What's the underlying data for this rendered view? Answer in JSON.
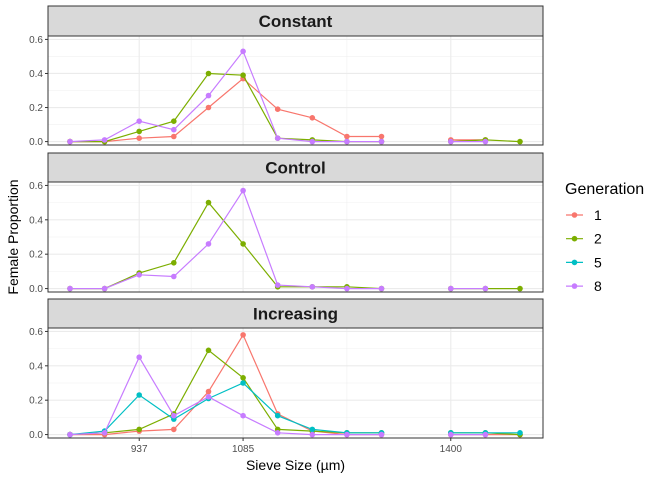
{
  "chart_data": {
    "type": "line",
    "facet_by": "treatment",
    "xlabel": "Sieve Size (µm)",
    "ylabel": "Female Proportion",
    "x_tick_labels": [
      "937",
      "1085",
      "1400"
    ],
    "y_tick_labels": [
      "0.0",
      "0.2",
      "0.4",
      "0.6"
    ],
    "ylim": [
      0,
      0.6
    ],
    "legend": {
      "title": "Generation",
      "position": "right"
    },
    "series_styles": [
      {
        "name": "1",
        "color": "#F8766D"
      },
      {
        "name": "2",
        "color": "#7CAE00"
      },
      {
        "name": "5",
        "color": "#00BFC4"
      },
      {
        "name": "8",
        "color": "#C77CFF"
      }
    ],
    "x": [
      800,
      870,
      937,
      980,
      1020,
      1085,
      1120,
      1180,
      1230,
      1300,
      1350,
      1400,
      1450,
      1520
    ],
    "panels": [
      {
        "title": "Constant",
        "series": [
          {
            "name": "1",
            "values": [
              0.0,
              0.0,
              0.02,
              0.03,
              0.2,
              0.37,
              0.19,
              0.14,
              0.03,
              0.03,
              null,
              0.01,
              0.01,
              null
            ]
          },
          {
            "name": "2",
            "values": [
              0.0,
              0.0,
              0.06,
              0.12,
              0.4,
              0.39,
              0.02,
              0.01,
              0.0,
              0.0,
              null,
              0.0,
              0.01,
              0.0
            ]
          },
          {
            "name": "8",
            "values": [
              0.0,
              0.01,
              0.12,
              0.07,
              0.27,
              0.53,
              0.02,
              0.0,
              0.0,
              0.0,
              null,
              0.0,
              0.0,
              null
            ]
          }
        ]
      },
      {
        "title": "Control",
        "series": [
          {
            "name": "2",
            "values": [
              0.0,
              0.0,
              0.09,
              0.15,
              0.5,
              0.26,
              0.01,
              0.01,
              0.01,
              0.0,
              null,
              0.0,
              0.0,
              0.0
            ]
          },
          {
            "name": "8",
            "values": [
              0.0,
              0.0,
              0.08,
              0.07,
              0.26,
              0.57,
              0.02,
              0.01,
              0.0,
              0.0,
              null,
              0.0,
              0.0,
              null
            ]
          }
        ]
      },
      {
        "title": "Increasing",
        "series": [
          {
            "name": "1",
            "values": [
              0.0,
              0.0,
              0.02,
              0.03,
              0.25,
              0.58,
              0.12,
              0.02,
              0.0,
              0.0,
              null,
              0.0,
              0.0,
              0.0
            ]
          },
          {
            "name": "2",
            "values": [
              0.0,
              0.01,
              0.03,
              0.12,
              0.49,
              0.33,
              0.03,
              0.02,
              0.01,
              0.01,
              null,
              0.01,
              0.01,
              0.0
            ]
          },
          {
            "name": "5",
            "values": [
              0.0,
              0.02,
              0.23,
              0.09,
              0.21,
              0.3,
              0.11,
              0.03,
              0.01,
              0.01,
              null,
              0.01,
              0.01,
              0.01
            ]
          },
          {
            "name": "8",
            "values": [
              0.0,
              0.01,
              0.45,
              0.11,
              0.22,
              0.11,
              0.01,
              0.0,
              0.0,
              0.0,
              null,
              0.0,
              0.0,
              null
            ]
          }
        ]
      }
    ]
  }
}
